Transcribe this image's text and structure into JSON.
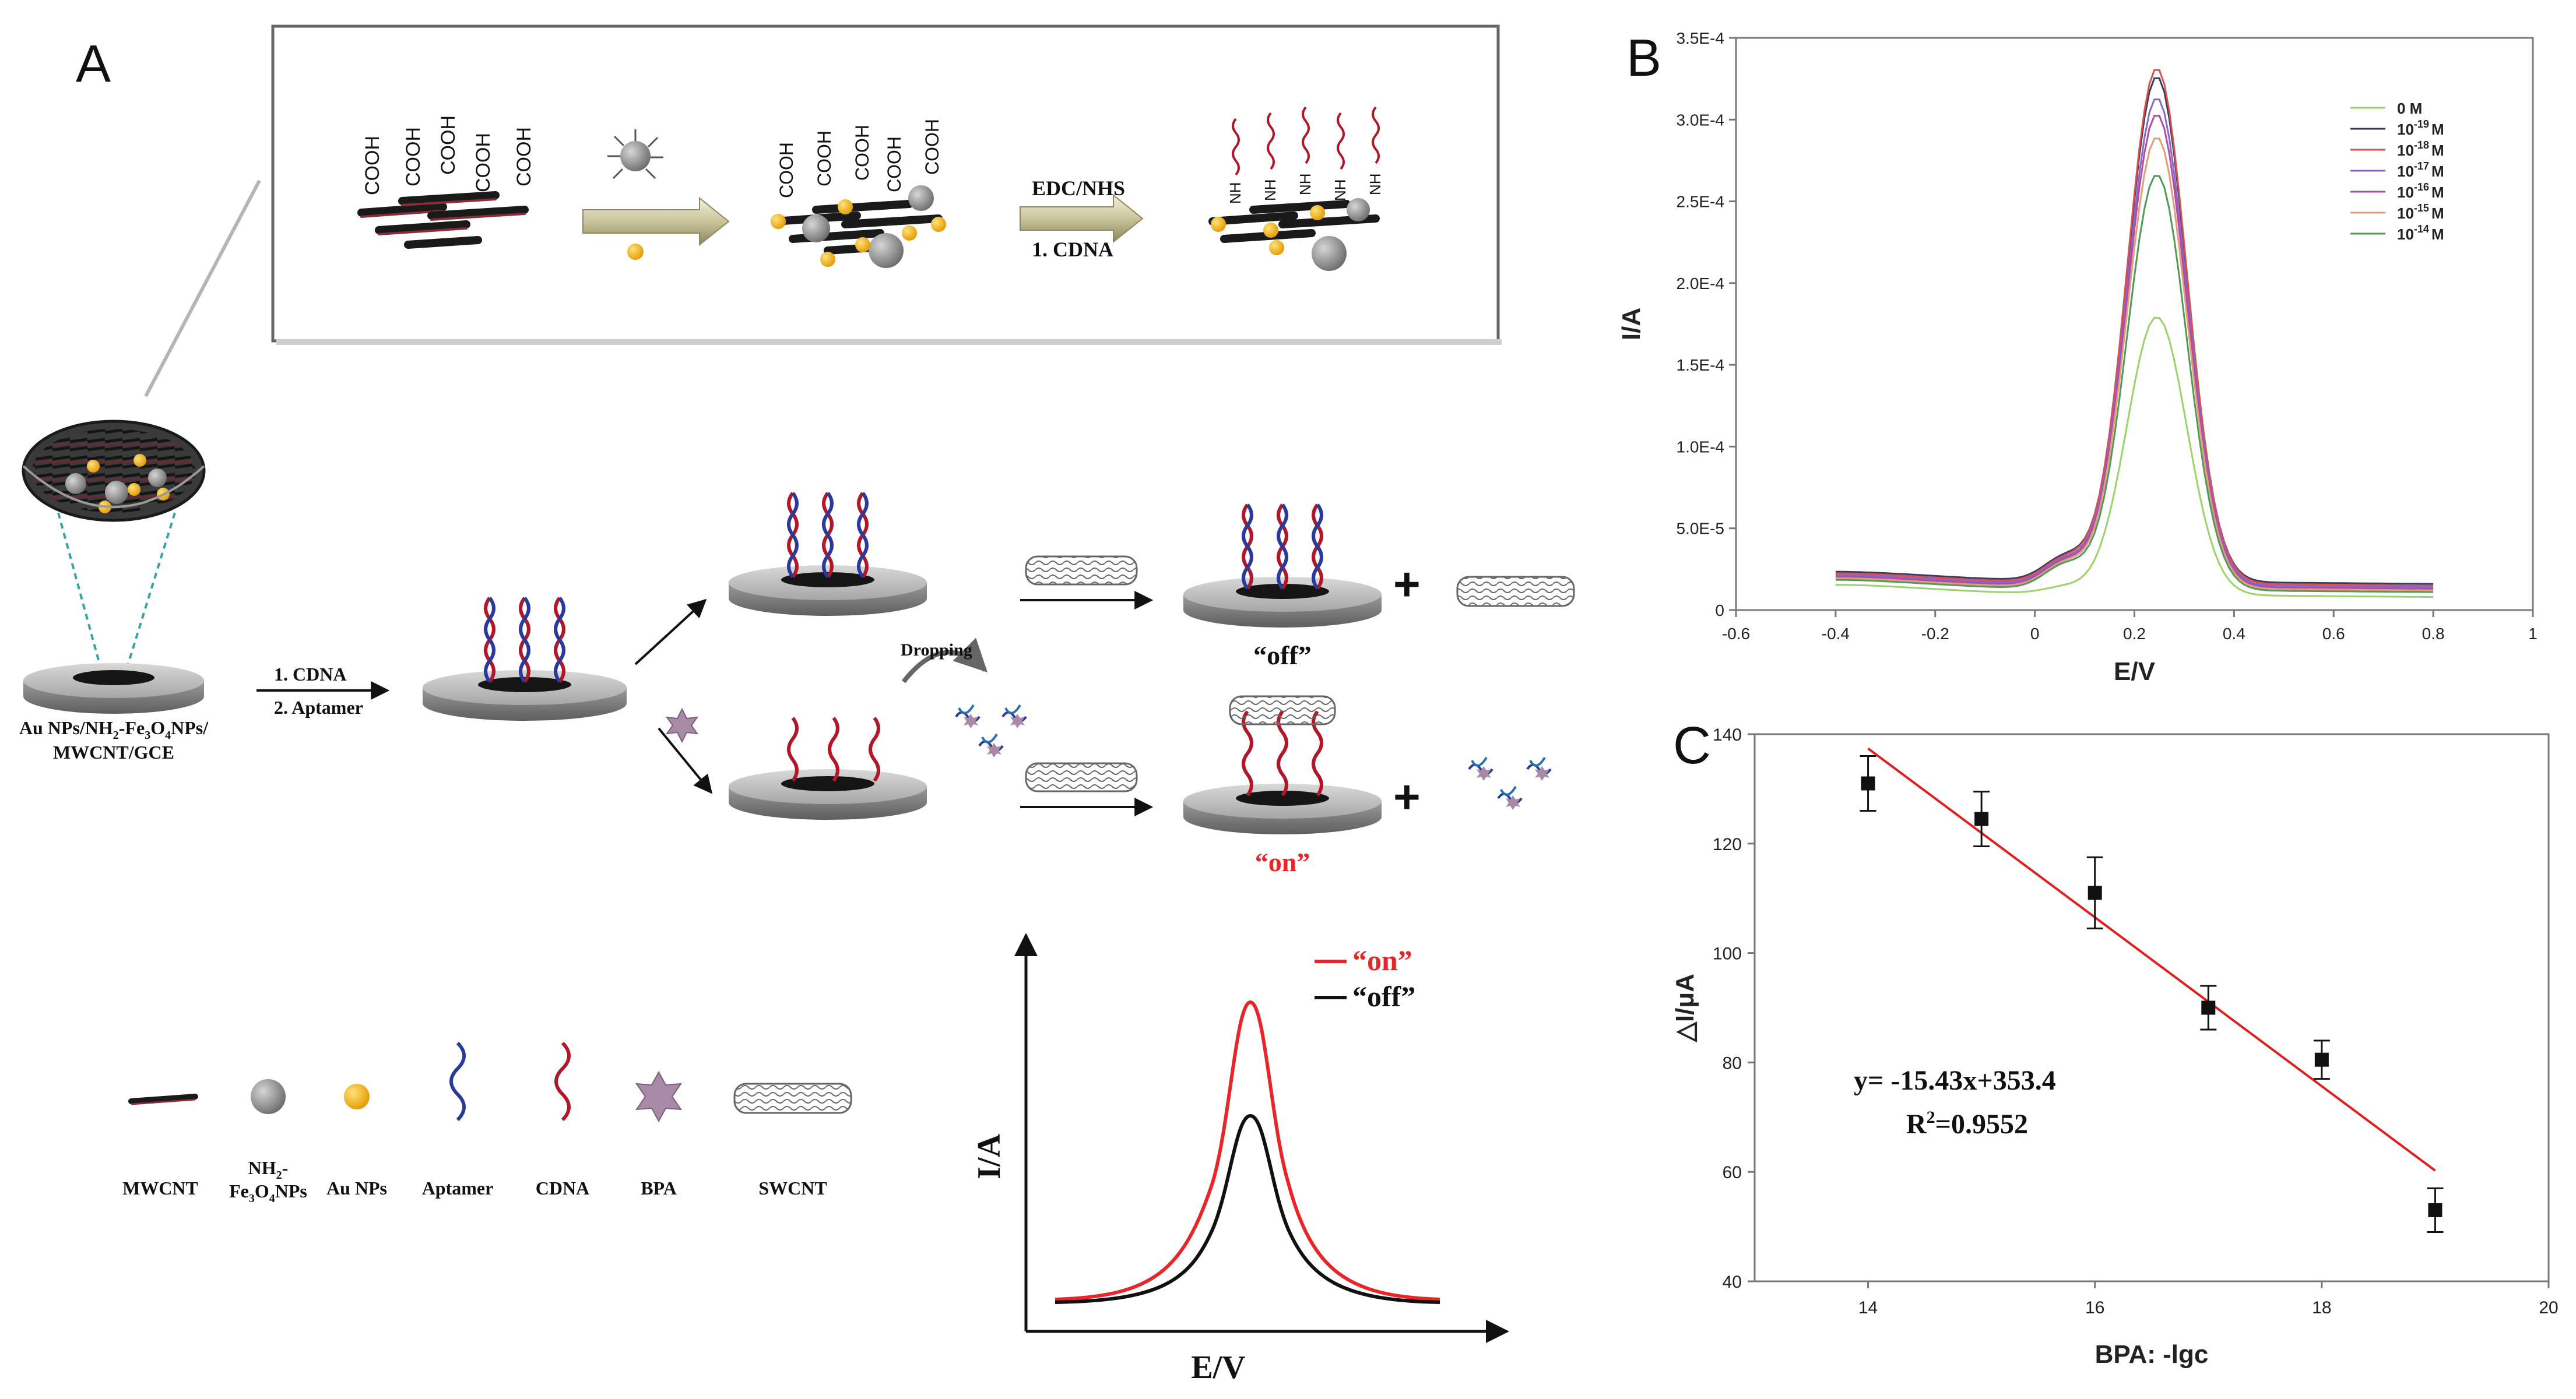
{
  "panel_labels": {
    "a": "A",
    "b": "B",
    "c": "C"
  },
  "scheme": {
    "cooh": "COOH",
    "edc_nhs": "EDC/NHS",
    "step_cdna": "1.   CDNA",
    "nh_label": "NH",
    "electrode_label_line1": "Au NPs/NH",
    "electrode_label_sub2": "2",
    "electrode_label_mid": "-Fe",
    "electrode_label_sub3": "3",
    "electrode_label_o": "O",
    "electrode_label_sub4": "4",
    "electrode_label_end": "NPs/",
    "electrode_label_line2": "MWCNT/GCE",
    "step1": "1.   CDNA",
    "step2": "2.   Aptamer",
    "dropping": "Dropping",
    "off": "“off”",
    "on": "“on”",
    "plus": "+"
  },
  "legend": {
    "mwcnt": "MWCNT",
    "fe_line1": "NH",
    "fe_sub2": "2",
    "fe_dash": "-",
    "fe_line2a": "Fe",
    "fe_sub3": "3",
    "fe_o": "O",
    "fe_sub4": "4",
    "fe_nps": "NPs",
    "au": "Au NPs",
    "aptamer": "Aptamer",
    "cdna": "CDNA",
    "bpa": "BPA",
    "swcnt": "SWCNT"
  },
  "schematic_plot": {
    "ylabel": "I/A",
    "xlabel": "E/V",
    "legend_on": "“on”",
    "legend_off": "“off”"
  },
  "colors": {
    "red": "#e8262a",
    "black": "#111111",
    "dna_red": "#b0182a",
    "dna_blue": "#2a3a9a",
    "gold": "#f2b21d",
    "gray_np": "#8c8c8c",
    "bpa": "#a98aa6"
  },
  "chart_data": [
    {
      "type": "line",
      "panel": "B",
      "xlabel": "E/V",
      "ylabel": "I/A",
      "xlim": [
        -0.6,
        1.0
      ],
      "ylim": [
        0,
        0.00035
      ],
      "xticks": [
        "-0.6",
        "-0.4",
        "-0.2",
        "0",
        "0.2",
        "0.4",
        "0.6",
        "0.8",
        "1"
      ],
      "yticks": [
        "0",
        "5.0E-5",
        "1.0E-4",
        "1.5E-4",
        "2.0E-4",
        "2.5E-4",
        "3.0E-4",
        "3.5E-4"
      ],
      "legend_position": "top-right",
      "series": [
        {
          "name": "0 M",
          "exp": "",
          "unit": " M",
          "color": "#9bd36a",
          "peak": 0.000178,
          "baseline": 8e-06
        },
        {
          "name": "10-19 M",
          "base": "10",
          "exp": "-19",
          "unit": "M",
          "color": "#3a3a60",
          "peak": 0.000325,
          "baseline": 1.6e-05
        },
        {
          "name": "10-18 M",
          "base": "10",
          "exp": "-18",
          "unit": "M",
          "color": "#d7524f",
          "peak": 0.00033,
          "baseline": 1.5e-05
        },
        {
          "name": "10-17 M",
          "base": "10",
          "exp": "-17",
          "unit": "M",
          "color": "#8a66c8",
          "peak": 0.000312,
          "baseline": 1.4e-05
        },
        {
          "name": "10-16 M",
          "base": "10",
          "exp": "-16",
          "unit": "M",
          "color": "#b04ca8",
          "peak": 0.000302,
          "baseline": 1.3e-05
        },
        {
          "name": "10-15 M",
          "base": "10",
          "exp": "-15",
          "unit": "M",
          "color": "#e59a7a",
          "peak": 0.000288,
          "baseline": 1.2e-05
        },
        {
          "name": "10-14 M",
          "base": "10",
          "exp": "-14",
          "unit": "M",
          "color": "#4f9a5a",
          "peak": 0.000265,
          "baseline": 1.1e-05
        }
      ],
      "peak_position": 0.245
    },
    {
      "type": "scatter",
      "panel": "C",
      "xlabel": "BPA: -lgc",
      "ylabel": "△I/μA",
      "xlim": [
        13,
        20
      ],
      "ylim": [
        40,
        140
      ],
      "xticks": [
        "14",
        "16",
        "18",
        "20"
      ],
      "yticks": [
        "40",
        "60",
        "80",
        "100",
        "120",
        "140"
      ],
      "x": [
        14,
        15,
        16,
        17,
        18,
        19
      ],
      "y": [
        131,
        124.5,
        111,
        90,
        80.5,
        53
      ],
      "error": [
        5,
        5,
        6.5,
        4,
        3.5,
        4
      ],
      "fit": {
        "slope": -15.43,
        "intercept": 353.4,
        "x_range": [
          14,
          19
        ],
        "color": "#e02020"
      },
      "equation": "y= -15.43x+353.4",
      "r2_prefix": "R",
      "r2_sup": "2",
      "r2_value": "=0.9552"
    }
  ]
}
